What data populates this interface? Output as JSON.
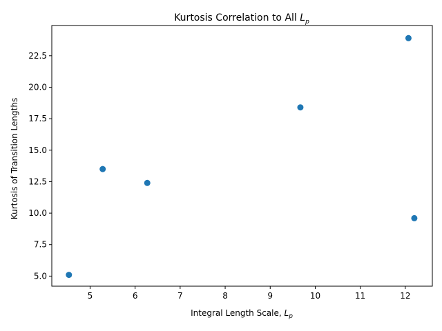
{
  "chart_data": {
    "type": "scatter",
    "title": "Kurtosis Correlation to All ",
    "title_symbol": "L",
    "title_subscript": "p",
    "xlabel": "Integral Length Scale, ",
    "xlabel_symbol": "L",
    "xlabel_subscript": "p",
    "ylabel": "Kurtosis of Transition Lengths",
    "xlim": [
      4.15,
      12.6
    ],
    "ylim": [
      4.2,
      24.9
    ],
    "xticks": [
      5,
      6,
      7,
      8,
      9,
      10,
      11,
      12
    ],
    "yticks": [
      5.0,
      7.5,
      10.0,
      12.5,
      15.0,
      17.5,
      20.0,
      22.5
    ],
    "xtick_labels": [
      "5",
      "6",
      "7",
      "8",
      "9",
      "10",
      "11",
      "12"
    ],
    "ytick_labels": [
      "5.0",
      "7.5",
      "10.0",
      "12.5",
      "15.0",
      "17.5",
      "20.0",
      "22.5"
    ],
    "points": [
      {
        "x": 4.53,
        "y": 5.1
      },
      {
        "x": 5.28,
        "y": 13.5
      },
      {
        "x": 6.27,
        "y": 12.4
      },
      {
        "x": 9.67,
        "y": 18.4
      },
      {
        "x": 12.07,
        "y": 23.9
      },
      {
        "x": 12.2,
        "y": 9.6
      }
    ],
    "marker_color": "#1f77b4",
    "grid": false,
    "legend": "none"
  }
}
